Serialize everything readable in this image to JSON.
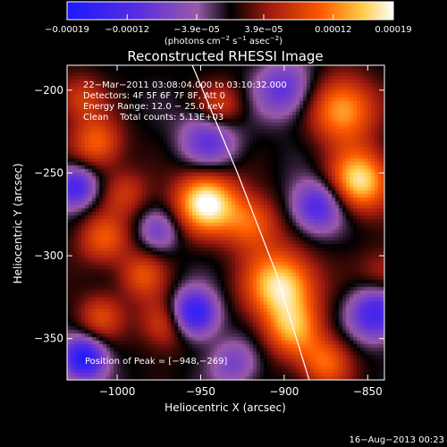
{
  "chart_data": {
    "type": "heatmap",
    "title": "Reconstructed RHESSI Image",
    "xlabel": "Heliocentric X (arcsec)",
    "ylabel": "Heliocentric Y (arcsec)",
    "xlim": [
      -1030,
      -840
    ],
    "ylim": [
      -375,
      -185
    ],
    "x_ticks": [
      -1000,
      -950,
      -900,
      -850
    ],
    "x_tick_labels": [
      "−1000",
      "−950",
      "−900",
      "−850"
    ],
    "y_ticks": [
      -350,
      -300,
      -250,
      -200
    ],
    "y_tick_labels": [
      "−350",
      "−300",
      "−250",
      "−200"
    ],
    "colorbar": {
      "ticks": [
        -0.00019,
        -0.00012,
        -3.9e-05,
        3.9e-05,
        0.00012,
        0.00019
      ],
      "tick_labels": [
        "−0.00019",
        "−0.00012",
        "−3.9e−05",
        "3.9e−05",
        "0.00012",
        "0.00019"
      ],
      "unit_line": {
        "pre": "(photons cm",
        "e1": "−2",
        "mid1": " s",
        "e2": "−1",
        "mid2": " asec",
        "e3": "−2",
        "post": ")"
      }
    },
    "annotations": [
      "22−Mar−2011 03:08:04.000 to 03:10:32.000",
      "Detectors: 4F 5F 6F 7F 8F, Att 0",
      "Energy Range: 12.0 − 25.0 keV",
      "Clean    Total counts: 5.13E+03"
    ],
    "peak_label": "Position of Peak = [−948,−269]",
    "limb": [
      [
        -955,
        -185
      ],
      [
        -928,
        -250
      ],
      [
        -905,
        -310
      ],
      [
        -885,
        -375
      ]
    ],
    "blobs": [
      {
        "x": -947,
        "y": -268,
        "amp": 1.0,
        "s": 13
      },
      {
        "x": -865,
        "y": -212,
        "amp": 0.75,
        "s": 14
      },
      {
        "x": -855,
        "y": -255,
        "amp": 0.9,
        "s": 13
      },
      {
        "x": -902,
        "y": -318,
        "amp": 0.92,
        "s": 15
      },
      {
        "x": -895,
        "y": -345,
        "amp": 0.6,
        "s": 12
      },
      {
        "x": -920,
        "y": -280,
        "amp": 0.55,
        "s": 12
      },
      {
        "x": -1012,
        "y": -232,
        "amp": 0.55,
        "s": 11
      },
      {
        "x": -1008,
        "y": -290,
        "amp": 0.5,
        "s": 11
      },
      {
        "x": -985,
        "y": -312,
        "amp": 0.45,
        "s": 10
      },
      {
        "x": -970,
        "y": -340,
        "amp": 0.55,
        "s": 11
      },
      {
        "x": -1010,
        "y": -337,
        "amp": 0.42,
        "s": 10
      },
      {
        "x": -1022,
        "y": -205,
        "amp": 0.4,
        "s": 10
      },
      {
        "x": -875,
        "y": -365,
        "amp": 0.55,
        "s": 11
      },
      {
        "x": -938,
        "y": -210,
        "amp": 0.42,
        "s": 10
      },
      {
        "x": -995,
        "y": -262,
        "amp": 0.35,
        "s": 10
      },
      {
        "x": -840,
        "y": -310,
        "amp": 0.3,
        "s": 10
      },
      {
        "x": -945,
        "y": -230,
        "amp": -0.55,
        "s": 12
      },
      {
        "x": -955,
        "y": -335,
        "amp": -1.0,
        "s": 10
      },
      {
        "x": -1020,
        "y": -362,
        "amp": -0.95,
        "s": 9
      },
      {
        "x": -1025,
        "y": -258,
        "amp": -0.7,
        "s": 9
      },
      {
        "x": -880,
        "y": -270,
        "amp": -0.7,
        "s": 11
      },
      {
        "x": -845,
        "y": -335,
        "amp": -0.75,
        "s": 11
      },
      {
        "x": -900,
        "y": -200,
        "amp": -0.55,
        "s": 12
      },
      {
        "x": -930,
        "y": -365,
        "amp": -0.4,
        "s": 10
      },
      {
        "x": -975,
        "y": -285,
        "amp": -0.4,
        "s": 9
      }
    ]
  },
  "footer": {
    "timestamp": "16−Aug−2013 00:23"
  }
}
